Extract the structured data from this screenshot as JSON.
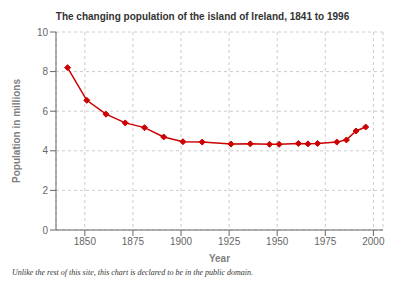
{
  "chart_data": {
    "type": "line",
    "title": "The changing population of the island of Ireland, 1841 to 1996",
    "xlabel": "Year",
    "ylabel": "Population in millions",
    "footnote": "Unlike the rest of this site, this chart is declared to be in the public domain.",
    "x": [
      1841,
      1851,
      1861,
      1871,
      1881,
      1891,
      1901,
      1911,
      1926,
      1936,
      1946,
      1951,
      1961,
      1966,
      1971,
      1981,
      1986,
      1991,
      1996
    ],
    "values": [
      8.2,
      6.55,
      5.85,
      5.41,
      5.17,
      4.7,
      4.46,
      4.44,
      4.34,
      4.35,
      4.33,
      4.33,
      4.37,
      4.35,
      4.37,
      4.44,
      4.55,
      5.0,
      5.2
    ],
    "color": "#cc0000",
    "marker": "diamond",
    "xlim": [
      1835,
      2005
    ],
    "ylim": [
      0,
      10
    ],
    "xticks": [
      1850,
      1875,
      1900,
      1925,
      1950,
      1975,
      2000
    ],
    "yticks": [
      0,
      2,
      4,
      6,
      8,
      10
    ],
    "grid": true
  }
}
